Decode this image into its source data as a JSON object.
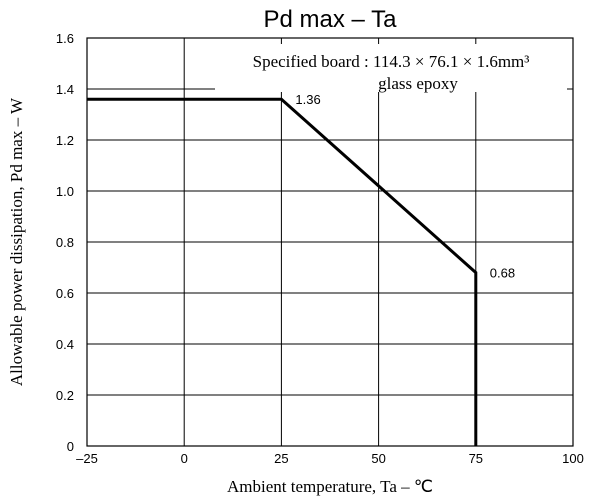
{
  "chart_data": {
    "type": "line",
    "title": "Pd max  –  Ta",
    "xlabel": "Ambient temperature, Ta  –  ℃",
    "ylabel": "Allowable power dissipation, Pd max – W",
    "xlim": [
      -25,
      100
    ],
    "ylim": [
      0,
      1.6
    ],
    "xticks": [
      -25,
      0,
      25,
      50,
      75,
      100
    ],
    "xtick_labels": [
      "–25",
      "0",
      "25",
      "50",
      "75",
      "100"
    ],
    "yticks": [
      0,
      0.2,
      0.4,
      0.6,
      0.8,
      1.0,
      1.2,
      1.4,
      1.6
    ],
    "ytick_labels": [
      "0",
      "0.2",
      "0.4",
      "0.6",
      "0.8",
      "1.0",
      "1.2",
      "1.4",
      "1.6"
    ],
    "grid": true,
    "series": [
      {
        "x": [
          -25,
          25,
          75,
          75
        ],
        "y": [
          1.36,
          1.36,
          0.68,
          0
        ]
      }
    ],
    "annotations": [
      {
        "text": "1.36",
        "x": 25,
        "y": 1.36
      },
      {
        "text": "0.68",
        "x": 75,
        "y": 0.68
      }
    ],
    "note_lines": [
      "Specified board : 114.3 × 76.1 × 1.6mm³",
      "glass epoxy"
    ]
  }
}
